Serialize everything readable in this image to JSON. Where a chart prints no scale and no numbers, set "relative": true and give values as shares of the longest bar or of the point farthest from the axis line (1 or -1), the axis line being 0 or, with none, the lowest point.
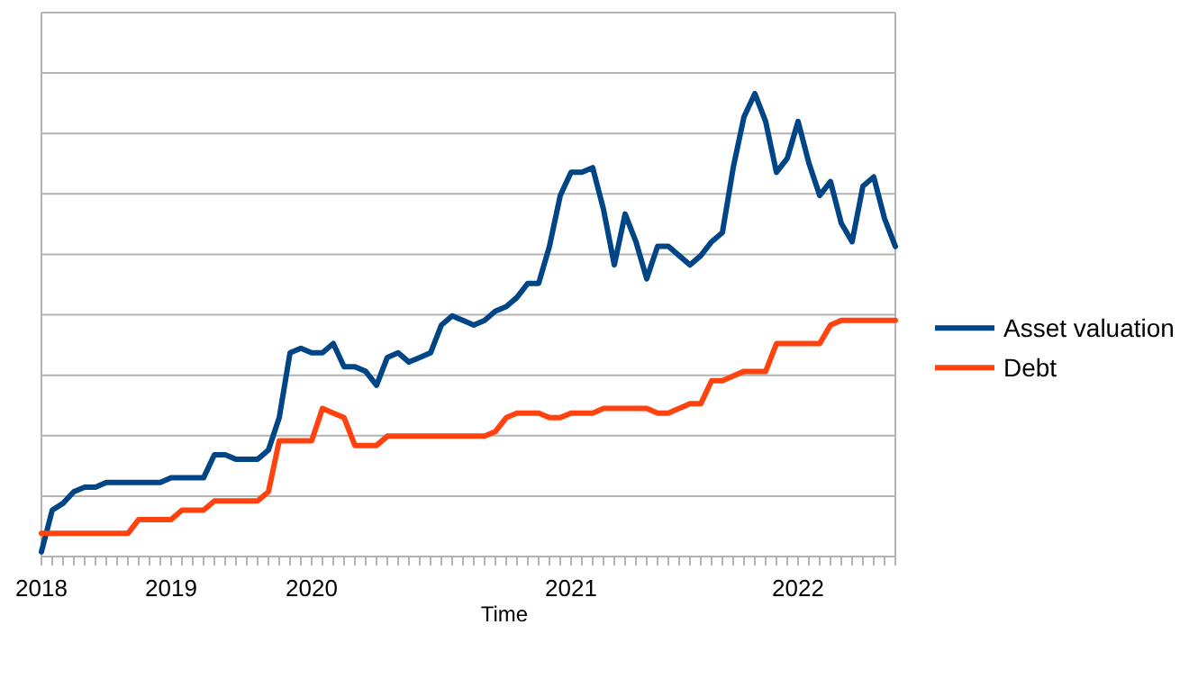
{
  "chart_data": {
    "type": "line",
    "relative": true,
    "xlabel": "Time",
    "categories": [
      "2018",
      null,
      null,
      null,
      null,
      null,
      null,
      null,
      null,
      null,
      null,
      null,
      "2019",
      null,
      null,
      null,
      null,
      null,
      null,
      null,
      null,
      null,
      null,
      null,
      null,
      "2020",
      null,
      null,
      null,
      null,
      null,
      null,
      null,
      null,
      null,
      null,
      null,
      null,
      null,
      null,
      null,
      null,
      null,
      null,
      null,
      null,
      null,
      null,
      null,
      "2021",
      null,
      null,
      null,
      null,
      null,
      null,
      null,
      null,
      null,
      null,
      null,
      null,
      null,
      null,
      null,
      null,
      null,
      null,
      null,
      null,
      "2022",
      null,
      null,
      null,
      null,
      null,
      null,
      null,
      null,
      null
    ],
    "grid": true,
    "legend": "right",
    "marker": "none",
    "line_style": "solid",
    "series": [
      {
        "name": "Asset valuation",
        "color": "#004586",
        "values": [
          0.01,
          0.1,
          0.115,
          0.14,
          0.15,
          0.15,
          0.16,
          0.16,
          0.16,
          0.16,
          0.16,
          0.16,
          0.17,
          0.17,
          0.17,
          0.17,
          0.22,
          0.22,
          0.21,
          0.21,
          0.21,
          0.23,
          0.3,
          0.44,
          0.45,
          0.44,
          0.44,
          0.46,
          0.41,
          0.41,
          0.4,
          0.37,
          0.43,
          0.44,
          0.42,
          0.43,
          0.44,
          0.5,
          0.52,
          0.51,
          0.5,
          0.51,
          0.53,
          0.54,
          0.56,
          0.59,
          0.59,
          0.67,
          0.78,
          0.83,
          0.83,
          0.84,
          0.75,
          0.63,
          0.74,
          0.68,
          0.6,
          0.67,
          0.67,
          0.65,
          0.63,
          0.65,
          0.68,
          0.7,
          0.84,
          0.95,
          1,
          0.94,
          0.83,
          0.86,
          0.94,
          0.85,
          0.78,
          0.81,
          0.72,
          0.68,
          0.8,
          0.82,
          0.73,
          0.67
        ]
      },
      {
        "name": "Debt",
        "color": "#ff420e",
        "values": [
          0.05,
          0.05,
          0.05,
          0.05,
          0.05,
          0.05,
          0.05,
          0.05,
          0.05,
          0.08,
          0.08,
          0.08,
          0.08,
          0.1,
          0.1,
          0.1,
          0.12,
          0.12,
          0.12,
          0.12,
          0.12,
          0.14,
          0.25,
          0.25,
          0.25,
          0.25,
          0.32,
          0.31,
          0.3,
          0.24,
          0.24,
          0.24,
          0.26,
          0.26,
          0.26,
          0.26,
          0.26,
          0.26,
          0.26,
          0.26,
          0.26,
          0.26,
          0.27,
          0.3,
          0.31,
          0.31,
          0.31,
          0.3,
          0.3,
          0.31,
          0.31,
          0.31,
          0.32,
          0.32,
          0.32,
          0.32,
          0.32,
          0.31,
          0.31,
          0.32,
          0.33,
          0.33,
          0.38,
          0.38,
          0.39,
          0.4,
          0.4,
          0.4,
          0.46,
          0.46,
          0.46,
          0.46,
          0.46,
          0.5,
          0.51,
          0.51,
          0.51,
          0.51,
          0.51,
          0.51
        ]
      }
    ]
  }
}
